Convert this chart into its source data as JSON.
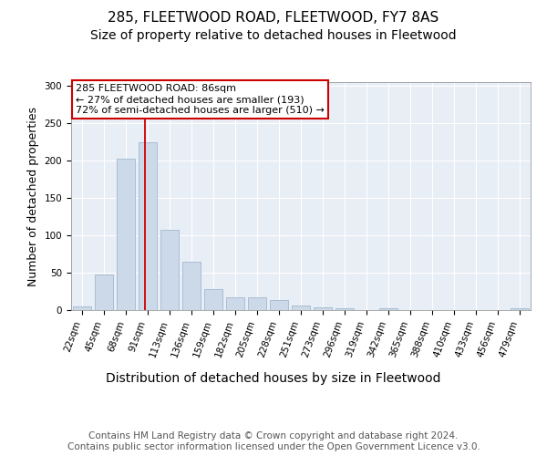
{
  "title1": "285, FLEETWOOD ROAD, FLEETWOOD, FY7 8AS",
  "title2": "Size of property relative to detached houses in Fleetwood",
  "xlabel": "Distribution of detached houses by size in Fleetwood",
  "ylabel": "Number of detached properties",
  "categories": [
    "22sqm",
    "45sqm",
    "68sqm",
    "91sqm",
    "113sqm",
    "136sqm",
    "159sqm",
    "182sqm",
    "205sqm",
    "228sqm",
    "251sqm",
    "273sqm",
    "296sqm",
    "319sqm",
    "342sqm",
    "365sqm",
    "388sqm",
    "410sqm",
    "433sqm",
    "456sqm",
    "479sqm"
  ],
  "values": [
    5,
    47,
    203,
    225,
    107,
    65,
    28,
    17,
    17,
    13,
    6,
    4,
    2,
    0,
    2,
    0,
    0,
    0,
    0,
    0,
    2
  ],
  "bar_color": "#ccd9e8",
  "bar_edge_color": "#aabdd4",
  "vline_x": 2.88,
  "vline_color": "#cc0000",
  "annotation_text": "285 FLEETWOOD ROAD: 86sqm\n← 27% of detached houses are smaller (193)\n72% of semi-detached houses are larger (510) →",
  "annotation_box_color": "#ffffff",
  "annotation_box_edge": "#cc0000",
  "ylim": [
    0,
    305
  ],
  "yticks": [
    0,
    50,
    100,
    150,
    200,
    250,
    300
  ],
  "footer": "Contains HM Land Registry data © Crown copyright and database right 2024.\nContains public sector information licensed under the Open Government Licence v3.0.",
  "bg_color": "#ffffff",
  "plot_bg_color": "#e8eef5",
  "title1_fontsize": 11,
  "title2_fontsize": 10,
  "xlabel_fontsize": 10,
  "ylabel_fontsize": 9,
  "tick_fontsize": 7.5,
  "footer_fontsize": 7.5,
  "annot_fontsize": 8
}
